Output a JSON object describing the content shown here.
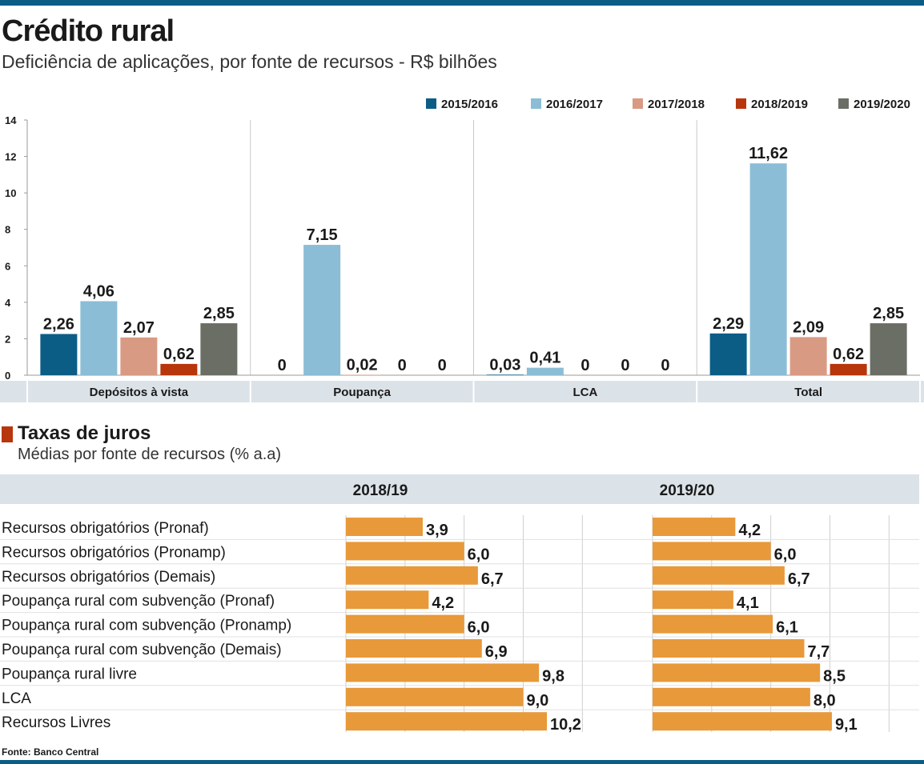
{
  "header": {
    "title": "Crédito rural",
    "subtitle": "Deficiência de aplicações, por fonte de recursos - R$ bilhões"
  },
  "colors": {
    "accent_blue": "#0b5d86",
    "2015/2016": "#0b5d86",
    "2016/2017": "#8bbdd6",
    "2017/2018": "#d99a84",
    "2018/2019": "#b8360c",
    "2019/2020": "#6b6e65",
    "rate_bar": "#e8993a",
    "header_band": "#dbe2e8"
  },
  "chart_data": [
    {
      "type": "bar",
      "title": "Crédito rural",
      "subtitle": "Deficiência de aplicações, por fonte de recursos - R$ bilhões",
      "categories": [
        "Depósitos à vista",
        "Poupança",
        "LCA",
        "Total"
      ],
      "series": [
        {
          "name": "2015/2016",
          "values": [
            2.26,
            0,
            0.03,
            2.29
          ],
          "labels": [
            "2,26",
            "0",
            "0,03",
            "2,29"
          ]
        },
        {
          "name": "2016/2017",
          "values": [
            4.06,
            7.15,
            0.41,
            11.62
          ],
          "labels": [
            "4,06",
            "7,15",
            "0,41",
            "11,62"
          ]
        },
        {
          "name": "2017/2018",
          "values": [
            2.07,
            0.02,
            0,
            2.09
          ],
          "labels": [
            "2,07",
            "0,02",
            "0",
            "2,09"
          ]
        },
        {
          "name": "2018/2019",
          "values": [
            0.62,
            0,
            0,
            0.62
          ],
          "labels": [
            "0,62",
            "0",
            "0",
            "0,62"
          ]
        },
        {
          "name": "2019/2020",
          "values": [
            2.85,
            0,
            0,
            2.85
          ],
          "labels": [
            "2,85",
            "0",
            "0",
            "2,85"
          ]
        }
      ],
      "yticks": [
        "0",
        "2",
        "4",
        "6",
        "8",
        "10",
        "12",
        "14"
      ],
      "ylim": [
        0,
        14
      ],
      "legend_position": "top-right",
      "grid": false
    },
    {
      "type": "bar",
      "orientation": "horizontal",
      "title": "Taxas de juros",
      "subtitle": "Médias por fonte de recursos (% a.a)",
      "categories": [
        "Recursos obrigatórios (Pronaf)",
        "Recursos obrigatórios (Pronamp)",
        "Recursos obrigatórios (Demais)",
        "Poupança rural com subvenção (Pronaf)",
        "Poupança rural com subvenção (Pronamp)",
        "Poupança rural com subvenção (Demais)",
        "Poupança rural livre",
        "LCA",
        "Recursos Livres"
      ],
      "series": [
        {
          "name": "2018/19",
          "values": [
            3.9,
            6.0,
            6.7,
            4.2,
            6.0,
            6.9,
            9.8,
            9.0,
            10.2
          ],
          "labels": [
            "3,9",
            "6,0",
            "6,7",
            "4,2",
            "6,0",
            "6,9",
            "9,8",
            "9,0",
            "10,2"
          ]
        },
        {
          "name": "2019/20",
          "values": [
            4.2,
            6.0,
            6.7,
            4.1,
            6.1,
            7.7,
            8.5,
            8.0,
            9.1
          ],
          "labels": [
            "4,2",
            "6,0",
            "6,7",
            "4,1",
            "6,1",
            "7,7",
            "8,5",
            "8,0",
            "9,1"
          ]
        }
      ],
      "xlim": [
        0,
        12
      ],
      "grid": true
    }
  ],
  "source": "Fonte: Banco Central"
}
